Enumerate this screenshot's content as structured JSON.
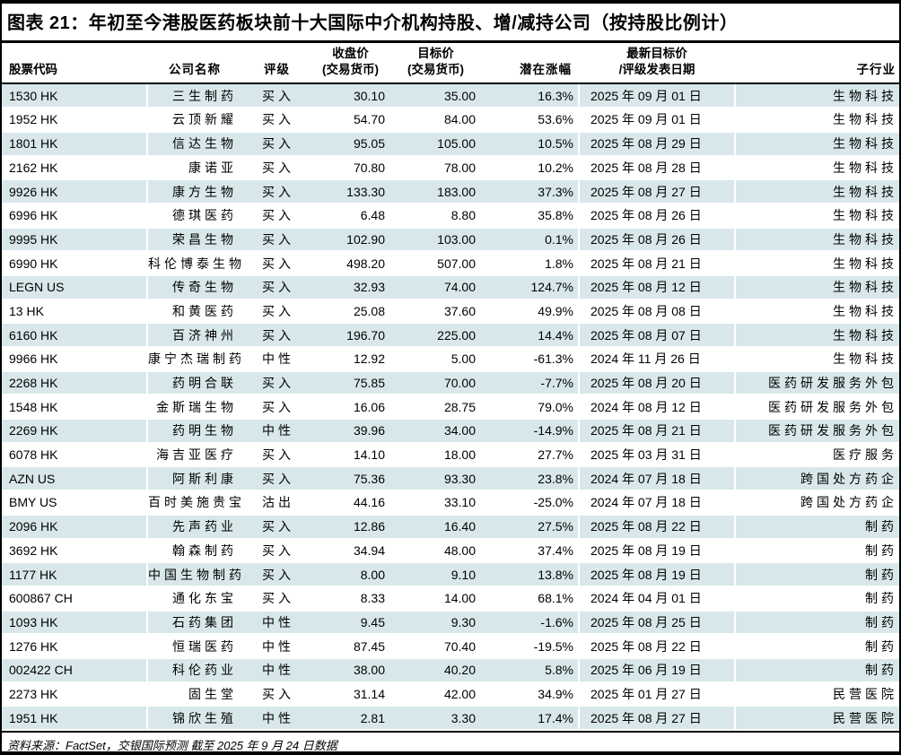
{
  "title": "图表 21：年初至今港股医药板块前十大国际中介机构持股、增/减持公司（按持股比例计）",
  "footer": "资料来源：FactSet，交银国际预测 截至 2025 年 9 月 24 日数据",
  "colors": {
    "row_shade": "#d8e8ea",
    "frame": "#000000"
  },
  "table": {
    "headers": {
      "code": "股票代码",
      "company": "公司名称",
      "rating": "评级",
      "close_line1": "收盘价",
      "close_line2": "(交易货币)",
      "target_line1": "目标价",
      "target_line2": "(交易货币)",
      "upside": "潜在涨幅",
      "date_line1": "最新目标价",
      "date_line2": "/评级发表日期",
      "industry": "子行业"
    },
    "rows": [
      {
        "code": "1530 HK",
        "company": "三生制药",
        "rating": "买入",
        "close": "30.10",
        "target": "35.00",
        "upside": "16.3%",
        "date": "2025 年 09 月 01 日",
        "industry": "生物科技"
      },
      {
        "code": "1952 HK",
        "company": "云顶新耀",
        "rating": "买入",
        "close": "54.70",
        "target": "84.00",
        "upside": "53.6%",
        "date": "2025 年 09 月 01 日",
        "industry": "生物科技"
      },
      {
        "code": "1801 HK",
        "company": "信达生物",
        "rating": "买入",
        "close": "95.05",
        "target": "105.00",
        "upside": "10.5%",
        "date": "2025 年 08 月 29 日",
        "industry": "生物科技"
      },
      {
        "code": "2162 HK",
        "company": "康诺亚",
        "rating": "买入",
        "close": "70.80",
        "target": "78.00",
        "upside": "10.2%",
        "date": "2025 年 08 月 28 日",
        "industry": "生物科技"
      },
      {
        "code": "9926 HK",
        "company": "康方生物",
        "rating": "买入",
        "close": "133.30",
        "target": "183.00",
        "upside": "37.3%",
        "date": "2025 年 08 月 27 日",
        "industry": "生物科技"
      },
      {
        "code": "6996 HK",
        "company": "德琪医药",
        "rating": "买入",
        "close": "6.48",
        "target": "8.80",
        "upside": "35.8%",
        "date": "2025 年 08 月 26 日",
        "industry": "生物科技"
      },
      {
        "code": "9995 HK",
        "company": "荣昌生物",
        "rating": "买入",
        "close": "102.90",
        "target": "103.00",
        "upside": "0.1%",
        "date": "2025 年 08 月 26 日",
        "industry": "生物科技"
      },
      {
        "code": "6990 HK",
        "company": "科伦博泰生物",
        "rating": "买入",
        "close": "498.20",
        "target": "507.00",
        "upside": "1.8%",
        "date": "2025 年 08 月 21 日",
        "industry": "生物科技"
      },
      {
        "code": "LEGN US",
        "company": "传奇生物",
        "rating": "买入",
        "close": "32.93",
        "target": "74.00",
        "upside": "124.7%",
        "date": "2025 年 08 月 12 日",
        "industry": "生物科技"
      },
      {
        "code": "13 HK",
        "company": "和黄医药",
        "rating": "买入",
        "close": "25.08",
        "target": "37.60",
        "upside": "49.9%",
        "date": "2025 年 08 月 08 日",
        "industry": "生物科技"
      },
      {
        "code": "6160 HK",
        "company": "百济神州",
        "rating": "买入",
        "close": "196.70",
        "target": "225.00",
        "upside": "14.4%",
        "date": "2025 年 08 月 07 日",
        "industry": "生物科技"
      },
      {
        "code": "9966 HK",
        "company": "康宁杰瑞制药",
        "rating": "中性",
        "close": "12.92",
        "target": "5.00",
        "upside": "-61.3%",
        "date": "2024 年 11 月 26 日",
        "industry": "生物科技"
      },
      {
        "code": "2268 HK",
        "company": "药明合联",
        "rating": "买入",
        "close": "75.85",
        "target": "70.00",
        "upside": "-7.7%",
        "date": "2025 年 08 月 20 日",
        "industry": "医药研发服务外包"
      },
      {
        "code": "1548 HK",
        "company": "金斯瑞生物",
        "rating": "买入",
        "close": "16.06",
        "target": "28.75",
        "upside": "79.0%",
        "date": "2024 年 08 月 12 日",
        "industry": "医药研发服务外包"
      },
      {
        "code": "2269 HK",
        "company": "药明生物",
        "rating": "中性",
        "close": "39.96",
        "target": "34.00",
        "upside": "-14.9%",
        "date": "2025 年 08 月 21 日",
        "industry": "医药研发服务外包"
      },
      {
        "code": "6078 HK",
        "company": "海吉亚医疗",
        "rating": "买入",
        "close": "14.10",
        "target": "18.00",
        "upside": "27.7%",
        "date": "2025 年 03 月 31 日",
        "industry": "医疗服务"
      },
      {
        "code": "AZN US",
        "company": "阿斯利康",
        "rating": "买入",
        "close": "75.36",
        "target": "93.30",
        "upside": "23.8%",
        "date": "2024 年 07 月 18 日",
        "industry": "跨国处方药企"
      },
      {
        "code": "BMY US",
        "company": "百时美施贵宝",
        "rating": "沽出",
        "close": "44.16",
        "target": "33.10",
        "upside": "-25.0%",
        "date": "2024 年 07 月 18 日",
        "industry": "跨国处方药企"
      },
      {
        "code": "2096 HK",
        "company": "先声药业",
        "rating": "买入",
        "close": "12.86",
        "target": "16.40",
        "upside": "27.5%",
        "date": "2025 年 08 月 22 日",
        "industry": "制药"
      },
      {
        "code": "3692 HK",
        "company": "翰森制药",
        "rating": "买入",
        "close": "34.94",
        "target": "48.00",
        "upside": "37.4%",
        "date": "2025 年 08 月 19 日",
        "industry": "制药"
      },
      {
        "code": "1177 HK",
        "company": "中国生物制药",
        "rating": "买入",
        "close": "8.00",
        "target": "9.10",
        "upside": "13.8%",
        "date": "2025 年 08 月 19 日",
        "industry": "制药"
      },
      {
        "code": "600867 CH",
        "company": "通化东宝",
        "rating": "买入",
        "close": "8.33",
        "target": "14.00",
        "upside": "68.1%",
        "date": "2024 年 04 月 01 日",
        "industry": "制药"
      },
      {
        "code": "1093 HK",
        "company": "石药集团",
        "rating": "中性",
        "close": "9.45",
        "target": "9.30",
        "upside": "-1.6%",
        "date": "2025 年 08 月 25 日",
        "industry": "制药"
      },
      {
        "code": "1276 HK",
        "company": "恒瑞医药",
        "rating": "中性",
        "close": "87.45",
        "target": "70.40",
        "upside": "-19.5%",
        "date": "2025 年 08 月 22 日",
        "industry": "制药"
      },
      {
        "code": "002422 CH",
        "company": "科伦药业",
        "rating": "中性",
        "close": "38.00",
        "target": "40.20",
        "upside": "5.8%",
        "date": "2025 年 06 月 19 日",
        "industry": "制药"
      },
      {
        "code": "2273 HK",
        "company": "固生堂",
        "rating": "买入",
        "close": "31.14",
        "target": "42.00",
        "upside": "34.9%",
        "date": "2025 年 01 月 27 日",
        "industry": "民营医院"
      },
      {
        "code": "1951 HK",
        "company": "锦欣生殖",
        "rating": "中性",
        "close": "2.81",
        "target": "3.30",
        "upside": "17.4%",
        "date": "2025 年 08 月 27 日",
        "industry": "民营医院"
      }
    ]
  }
}
